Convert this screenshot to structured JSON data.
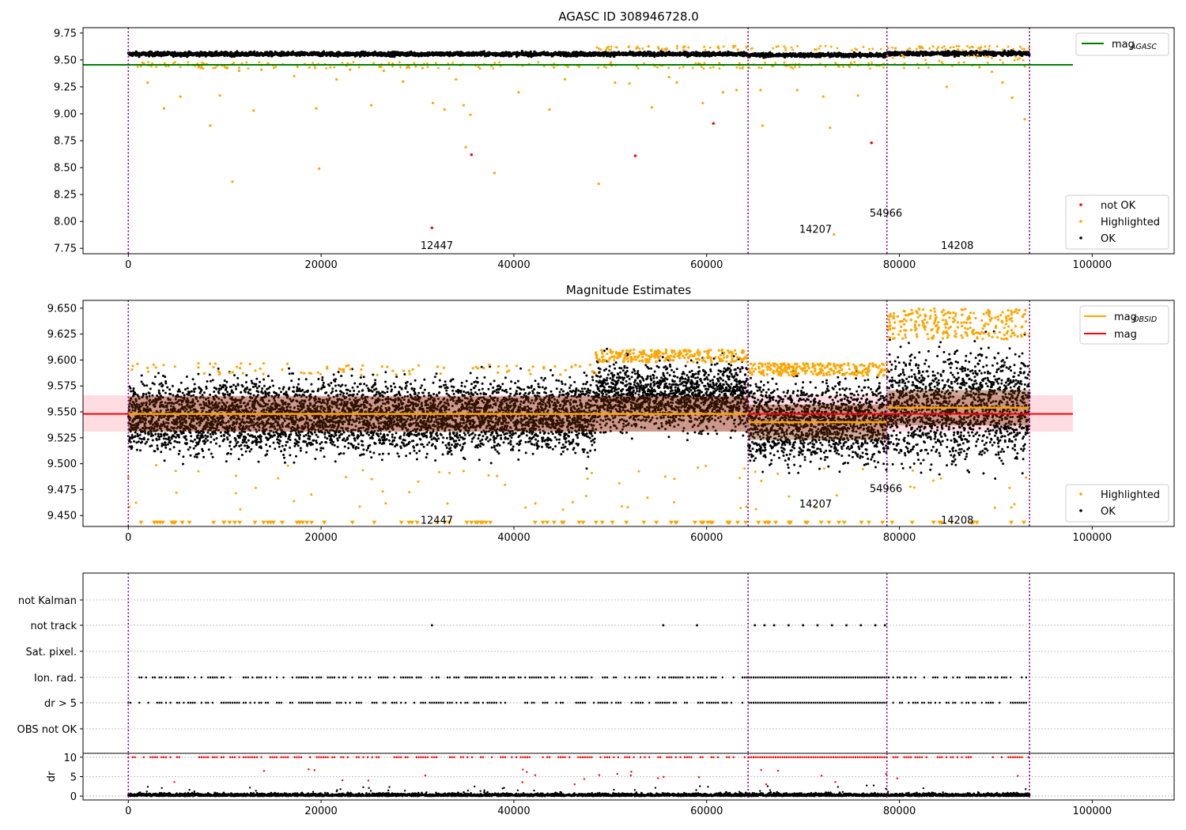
{
  "chart_data": [
    {
      "type": "scatter",
      "title": "AGASC ID 308946728.0",
      "xlabel": "",
      "ylabel": "",
      "xlim": [
        -4700,
        108500
      ],
      "ylim": [
        7.7,
        9.8
      ],
      "xticks": [
        0,
        20000,
        40000,
        60000,
        80000,
        100000
      ],
      "yticks": [
        7.75,
        8.0,
        8.25,
        8.5,
        8.75,
        9.0,
        9.25,
        9.5,
        9.75
      ],
      "ytick_labels": [
        "7.75",
        "8.00",
        "8.25",
        "8.50",
        "8.75",
        "9.00",
        "9.25",
        "9.50",
        "9.75"
      ],
      "obsid_boundaries": [
        0,
        64300,
        78700,
        93500
      ],
      "obsid_labels": [
        {
          "text": "12447",
          "x": 32000,
          "y": 7.78
        },
        {
          "text": "14207",
          "x": 71300,
          "y": 7.93
        },
        {
          "text": "54966",
          "x": 78600,
          "y": 8.08
        },
        {
          "text": "14208",
          "x": 86000,
          "y": 7.78
        }
      ],
      "lines": [
        {
          "name": "mag_AGASC",
          "label_main": "mag",
          "label_sub": "AGASC",
          "color": "#008000",
          "y": 9.455,
          "x_range": [
            -4700,
            98000
          ]
        }
      ],
      "ok_band": {
        "segments": [
          [
            0,
            64300,
            9.555
          ],
          [
            64300,
            78700,
            9.545
          ],
          [
            78700,
            93500,
            9.56
          ]
        ],
        "halfwidth": 0.025
      },
      "highlighted_points": [
        [
          2000,
          9.29
        ],
        [
          3700,
          9.05
        ],
        [
          5400,
          9.16
        ],
        [
          8500,
          8.89
        ],
        [
          9500,
          9.17
        ],
        [
          10800,
          8.37
        ],
        [
          11500,
          9.4
        ],
        [
          13000,
          9.03
        ],
        [
          13800,
          9.41
        ],
        [
          17200,
          9.35
        ],
        [
          19500,
          9.05
        ],
        [
          19800,
          8.49
        ],
        [
          21600,
          9.32
        ],
        [
          23000,
          9.41
        ],
        [
          25200,
          9.08
        ],
        [
          26500,
          9.4
        ],
        [
          28500,
          9.3
        ],
        [
          31600,
          9.1
        ],
        [
          32800,
          9.04
        ],
        [
          34000,
          9.32
        ],
        [
          34800,
          9.08
        ],
        [
          35000,
          8.69
        ],
        [
          35500,
          8.99
        ],
        [
          38000,
          8.45
        ],
        [
          40500,
          9.2
        ],
        [
          43700,
          9.04
        ],
        [
          45300,
          9.32
        ],
        [
          48800,
          8.35
        ],
        [
          50500,
          9.29
        ],
        [
          52000,
          9.28
        ],
        [
          54300,
          9.06
        ],
        [
          56100,
          9.34
        ],
        [
          56900,
          9.29
        ],
        [
          59600,
          9.1
        ],
        [
          61700,
          9.2
        ],
        [
          63100,
          9.22
        ],
        [
          65600,
          9.22
        ],
        [
          65800,
          8.89
        ],
        [
          69400,
          9.22
        ],
        [
          72100,
          9.16
        ],
        [
          72800,
          8.87
        ],
        [
          73200,
          7.88
        ],
        [
          75700,
          9.17
        ],
        [
          84900,
          9.25
        ],
        [
          89600,
          9.39
        ],
        [
          90700,
          9.29
        ],
        [
          91700,
          9.15
        ],
        [
          93000,
          8.95
        ]
      ],
      "notok_points": [
        [
          31500,
          7.94
        ],
        [
          35600,
          8.62
        ],
        [
          52600,
          8.61
        ],
        [
          60700,
          8.91
        ],
        [
          77100,
          8.73
        ]
      ],
      "legend": {
        "placement": "lower-right",
        "entries": [
          {
            "label": "not OK",
            "color": "#ff0000"
          },
          {
            "label": "Highlighted",
            "color": "#ffa500"
          },
          {
            "label": "OK",
            "color": "#000000"
          }
        ]
      }
    },
    {
      "type": "scatter",
      "title": "Magnitude Estimates",
      "xlabel": "",
      "ylabel": "",
      "xlim": [
        -4700,
        108500
      ],
      "ylim": [
        9.4395,
        9.6575
      ],
      "xticks": [
        0,
        20000,
        40000,
        60000,
        80000,
        100000
      ],
      "yticks": [
        9.45,
        9.475,
        9.5,
        9.525,
        9.55,
        9.575,
        9.6,
        9.625,
        9.65
      ],
      "ytick_labels": [
        "9.450",
        "9.475",
        "9.500",
        "9.525",
        "9.550",
        "9.575",
        "9.600",
        "9.625",
        "9.650"
      ],
      "obsid_boundaries": [
        0,
        64300,
        78700,
        93500
      ],
      "obsid_labels": [
        {
          "text": "12447",
          "x": 32000,
          "y": 9.446
        },
        {
          "text": "14207",
          "x": 71300,
          "y": 9.4615
        },
        {
          "text": "54966",
          "x": 78600,
          "y": 9.4765
        },
        {
          "text": "14208",
          "x": 86000,
          "y": 9.446
        }
      ],
      "mag": 9.548,
      "mag_band": [
        9.531,
        9.566
      ],
      "mag_obsid_segments": [
        [
          0,
          64300,
          9.548
        ],
        [
          64300,
          78700,
          9.54
        ],
        [
          78700,
          93500,
          9.554
        ]
      ],
      "data_segments": [
        {
          "x_range": [
            0,
            48500
          ],
          "center": 9.546,
          "ok_range": [
            9.505,
            9.585
          ]
        },
        {
          "x_range": [
            48500,
            64300
          ],
          "center": 9.565,
          "ok_range": [
            9.525,
            9.598
          ]
        },
        {
          "x_range": [
            64300,
            78700
          ],
          "center": 9.54,
          "ok_range": [
            9.498,
            9.585
          ]
        },
        {
          "x_range": [
            78700,
            93500
          ],
          "center": 9.555,
          "ok_range": [
            9.498,
            9.62
          ]
        }
      ],
      "legend": {
        "placement": "upper-right",
        "entries": [
          {
            "label_main": "mag",
            "label_sub": "OBSID",
            "color": "#ffa500"
          },
          {
            "label_main": "mag",
            "label_sub": "",
            "color": "#ff0000"
          }
        ]
      },
      "legend_points": {
        "placement": "lower-right",
        "entries": [
          {
            "label": "Highlighted",
            "color": "#ffa500"
          },
          {
            "label": "OK",
            "color": "#000000"
          }
        ]
      }
    },
    {
      "type": "scatter",
      "title": "",
      "xlim": [
        -4700,
        108500
      ],
      "xticks": [
        0,
        20000,
        40000,
        60000,
        80000,
        100000
      ],
      "flag_labels": [
        "not Kalman",
        "not track",
        "Sat. pixel.",
        "Ion. rad.",
        "dr > 5",
        "OBS not OK"
      ],
      "flag_points": {
        "not track": [
          31500,
          55500,
          59000,
          65000,
          66000,
          67000,
          68500,
          70000,
          71500,
          73000,
          74500,
          76000,
          77500,
          78500
        ],
        "Ion. rad.": "dense-sampled",
        "dr > 5": "dense-sampled"
      },
      "dr": {
        "ylabel": "dr",
        "yticks": [
          0,
          5,
          10
        ],
        "ylim": [
          -1,
          11
        ],
        "threshold": 10
      }
    }
  ]
}
